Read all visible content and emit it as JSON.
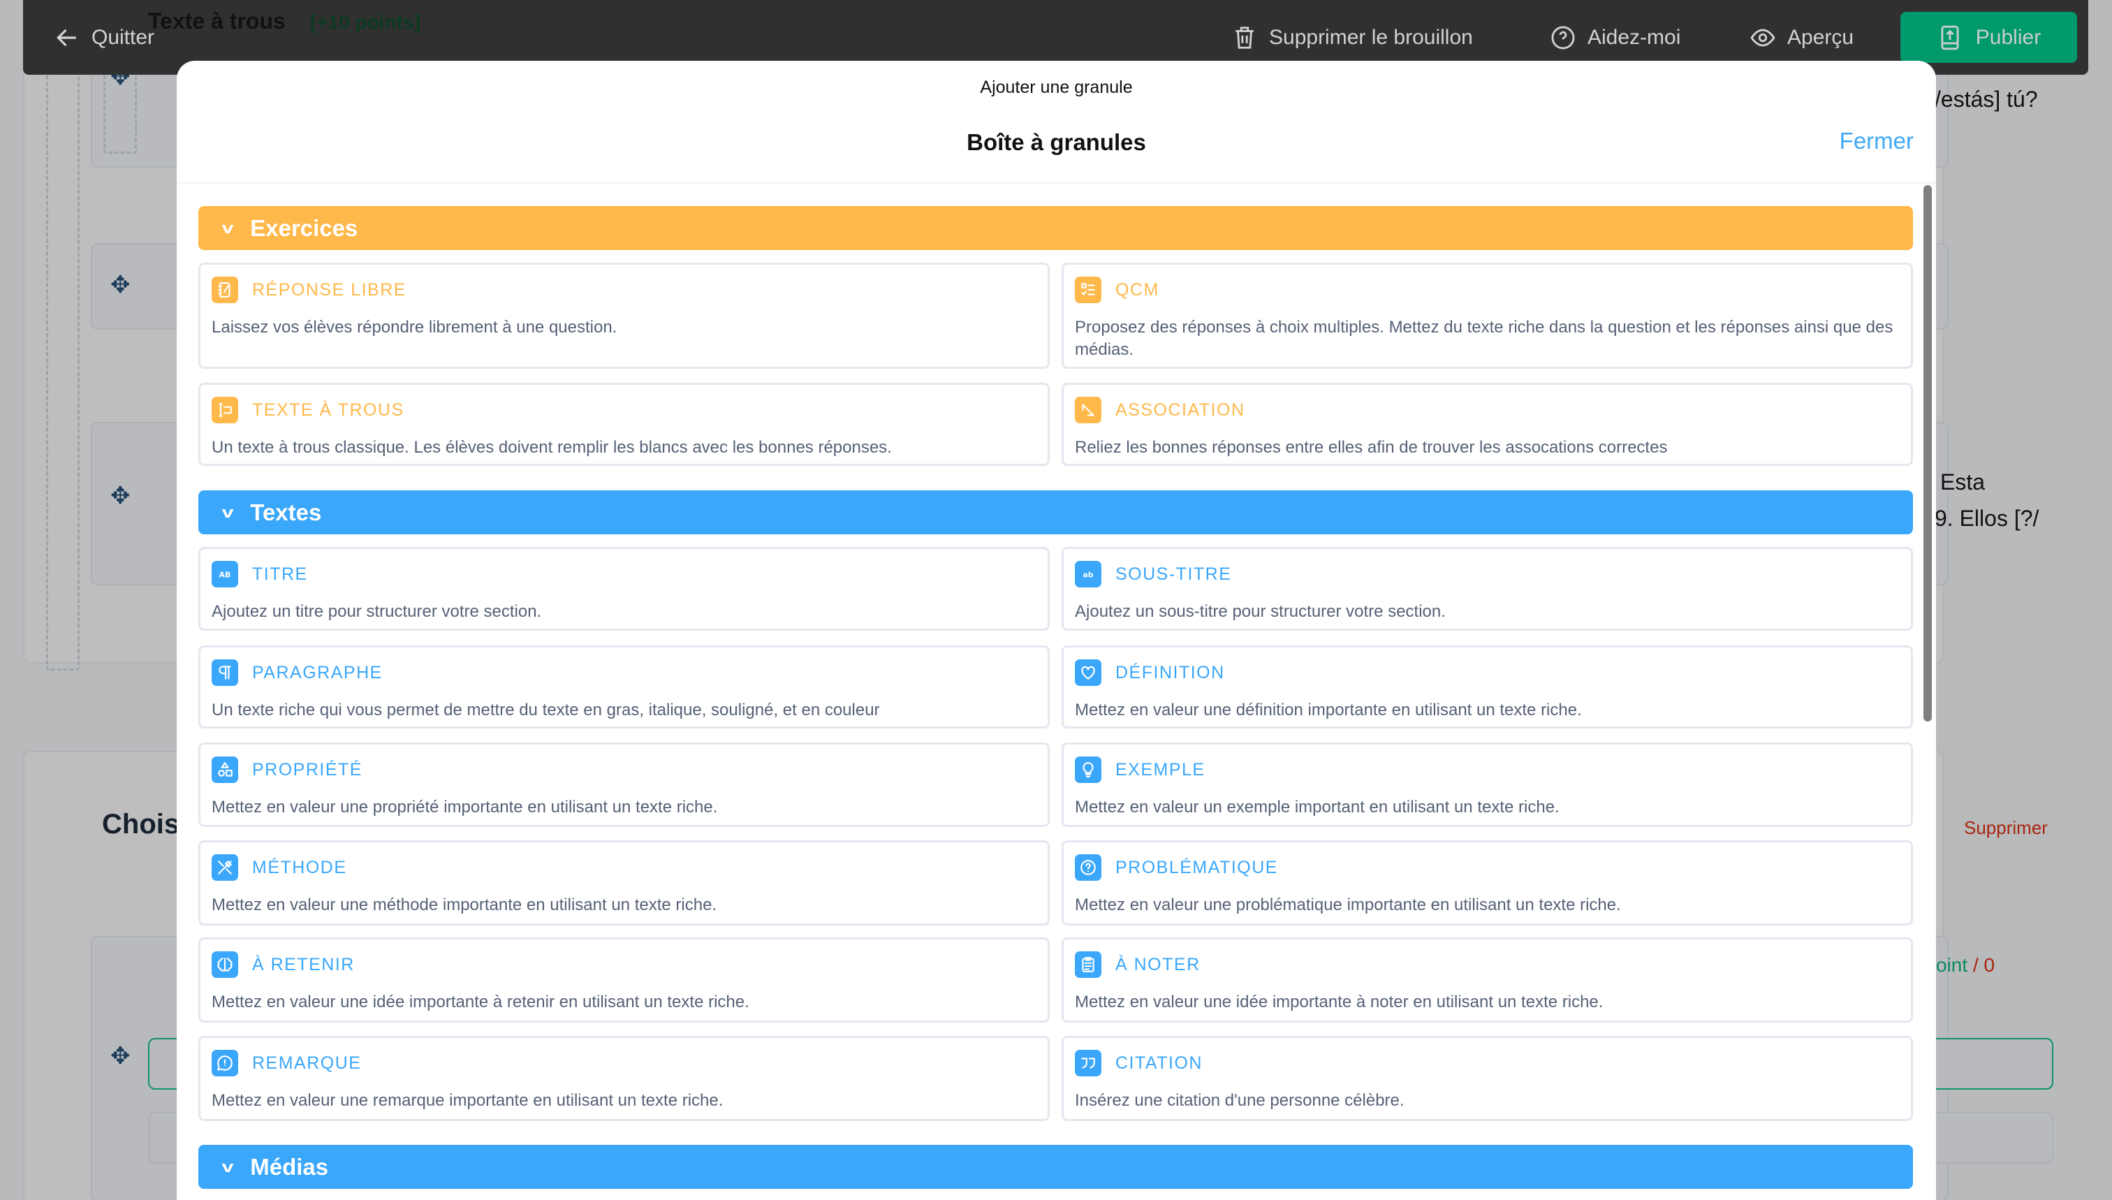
{
  "topbar": {
    "quit_label": "Quitter",
    "delete_draft_label": "Supprimer le brouillon",
    "help_label": "Aidez-moi",
    "preview_label": "Aperçu",
    "publish_label": "Publier"
  },
  "background": {
    "block_title": "Texte à trous",
    "block_points": "[+10 points]",
    "line_fragment_right": "/estás] tú?",
    "fragment_esta": "Esta",
    "fragment_ellos": "9. Ellos [?/",
    "section_title_fragment": "Chois",
    "delete_label": "Supprimer",
    "points_fragment": "oint",
    "points_zero": "/ 0"
  },
  "modal": {
    "subtitle": "Ajouter une granule",
    "title": "Boîte à granules",
    "close_label": "Fermer",
    "sections": [
      {
        "label": "Exercices",
        "color": "#ffb84a",
        "items": [
          {
            "title": "RÉPONSE LIBRE",
            "icon": "notebook-pen-icon",
            "desc": "Laissez vos élèves répondre librement à une question."
          },
          {
            "title": "QCM",
            "icon": "checklist-icon",
            "desc": "Proposez des réponses à choix multiples. Mettez du texte riche dans la question et les réponses ainsi que des médias."
          },
          {
            "title": "TEXTE À TROUS",
            "icon": "text-cursor-input-icon",
            "desc": "Un texte à trous classique. Les élèves doivent remplir les blancs avec les bonnes réponses."
          },
          {
            "title": "ASSOCIATION",
            "icon": "arrow-diagonal-icon",
            "desc": "Reliez les bonnes réponses entre elles afin de trouver les assocations correctes"
          }
        ]
      },
      {
        "label": "Textes",
        "color": "#3aa7fb",
        "items": [
          {
            "title": "TITRE",
            "icon": "heading-ab-icon",
            "desc": "Ajoutez un titre pour structurer votre section."
          },
          {
            "title": "SOUS-TITRE",
            "icon": "subheading-ab-icon",
            "desc": "Ajoutez un sous-titre pour structurer votre section."
          },
          {
            "title": "PARAGRAPHE",
            "icon": "pilcrow-icon",
            "desc": "Un texte riche qui vous permet de mettre du texte en gras, italique, souligné, et en couleur"
          },
          {
            "title": "DÉFINITION",
            "icon": "heart-icon",
            "desc": "Mettez en valeur une définition importante en utilisant un texte riche."
          },
          {
            "title": "PROPRIÉTÉ",
            "icon": "shapes-icon",
            "desc": "Mettez en valeur une propriété importante en utilisant un texte riche."
          },
          {
            "title": "EXEMPLE",
            "icon": "lightbulb-icon",
            "desc": "Mettez en valeur un exemple important en utilisant un texte riche."
          },
          {
            "title": "MÉTHODE",
            "icon": "tools-icon",
            "desc": "Mettez en valeur une méthode importante en utilisant un texte riche."
          },
          {
            "title": "PROBLÉMATIQUE",
            "icon": "question-circle-icon",
            "desc": "Mettez en valeur une problématique importante en utilisant un texte riche."
          },
          {
            "title": "À RETENIR",
            "icon": "brain-icon",
            "desc": "Mettez en valeur une idée importante à retenir en utilisant un texte riche."
          },
          {
            "title": "À NOTER",
            "icon": "clipboard-icon",
            "desc": "Mettez en valeur une idée importante à noter en utilisant un texte riche."
          },
          {
            "title": "REMARQUE",
            "icon": "message-circle-icon",
            "desc": "Mettez en valeur une remarque importante en utilisant un texte riche."
          },
          {
            "title": "CITATION",
            "icon": "quote-icon",
            "desc": "Insérez une citation d'une personne célèbre."
          }
        ]
      },
      {
        "label": "Médias",
        "color": "#3aa7fb",
        "items": []
      }
    ]
  }
}
